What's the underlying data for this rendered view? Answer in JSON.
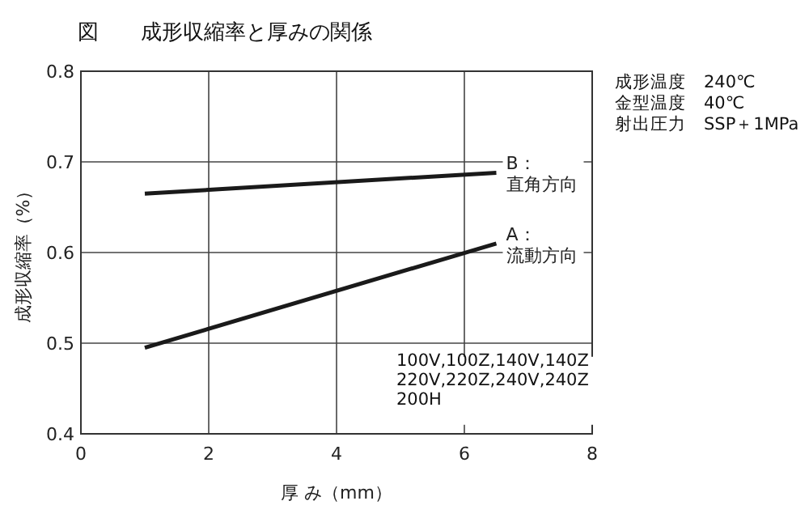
{
  "chart_data": {
    "type": "line",
    "title": "図　　成形収縮率と厚みの関係",
    "xlabel": "厚 み（mm）",
    "ylabel": "成形収縮率（%）",
    "x": [
      1,
      6.5
    ],
    "xlim": [
      0,
      8
    ],
    "xticks": [
      0,
      2,
      4,
      6,
      8
    ],
    "ylim": [
      0.4,
      0.8
    ],
    "yticks": [
      0.4,
      0.5,
      0.6,
      0.7,
      0.8
    ],
    "grid": true,
    "marker": "none",
    "line_style": "solid",
    "series": [
      {
        "name": "B：直角方向",
        "color": "#1a1a1a",
        "values": [
          0.665,
          0.688
        ]
      },
      {
        "name": "A：流動方向",
        "color": "#1a1a1a",
        "values": [
          0.495,
          0.61
        ]
      }
    ],
    "annotations": [
      "成形温度　240℃",
      "金型温度　40℃",
      "射出圧力　SSP＋1MPa",
      "100V,100Z,140V,140Z\n220V,220Z,240V,240Z\n200H"
    ]
  }
}
